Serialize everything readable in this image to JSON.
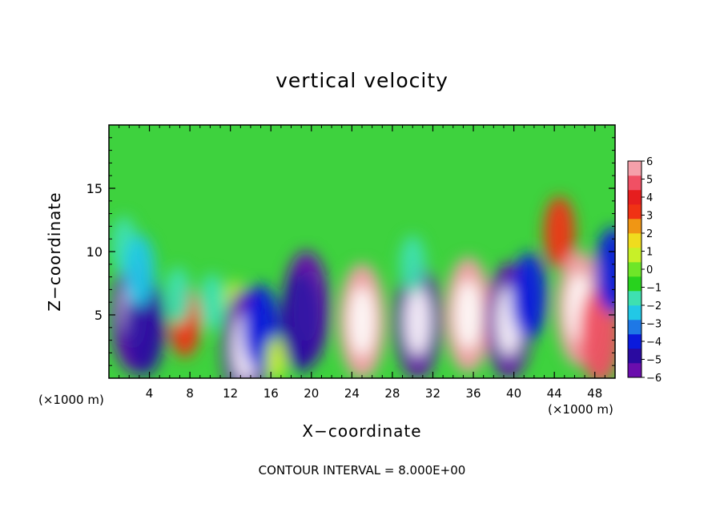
{
  "chart_data": {
    "type": "heatmap",
    "title": "vertical velocity",
    "xlabel": "X−coordinate",
    "ylabel": "Z−coordinate",
    "x_unit_label_left": "(×1000 m)",
    "x_unit_label_right": "(×1000 m)",
    "footer": "CONTOUR INTERVAL = 8.000E+00",
    "xlim": [
      0,
      50
    ],
    "ylim": [
      0,
      20
    ],
    "x_ticks": [
      "4",
      "8",
      "12",
      "16",
      "20",
      "24",
      "28",
      "32",
      "36",
      "40",
      "44",
      "48"
    ],
    "x_tick_values": [
      4,
      8,
      12,
      16,
      20,
      24,
      28,
      32,
      36,
      40,
      44,
      48
    ],
    "y_ticks": [
      "5",
      "10",
      "15"
    ],
    "y_tick_values": [
      5,
      10,
      15
    ],
    "colorbar_range": [
      -6,
      6
    ],
    "colorbar_ticks": [
      "6",
      "5",
      "4",
      "3",
      "2",
      "1",
      "0",
      "−1",
      "−2",
      "−3",
      "−4",
      "−5",
      "−6"
    ],
    "colorbar_tick_values": [
      6,
      5,
      4,
      3,
      2,
      1,
      0,
      -1,
      -2,
      -3,
      -4,
      -5,
      -6
    ],
    "colorbar_colors": [
      "#6a0dad",
      "#2a0aa0",
      "#0a1adc",
      "#1e78e6",
      "#22c8e6",
      "#3ee0b0",
      "#28d21e",
      "#6ee628",
      "#c8f028",
      "#f0dc1e",
      "#f09614",
      "#f03214",
      "#e61e1e",
      "#f05064",
      "#f5a0aa"
    ],
    "background_color": "#3ed23e",
    "cells": [
      {
        "x": 2.5,
        "z": 5.0,
        "w": -6
      },
      {
        "x": 3.5,
        "z": 4.2,
        "w": -5
      },
      {
        "x": 7.5,
        "z": 4.5,
        "w": 3
      },
      {
        "x": 6.8,
        "z": 6.5,
        "w": -2
      },
      {
        "x": 10.2,
        "z": 6.0,
        "w": -2
      },
      {
        "x": 12.5,
        "z": 6.0,
        "w": 1
      },
      {
        "x": 13.5,
        "z": 2.5,
        "w": -6
      },
      {
        "x": 15.0,
        "z": 4.0,
        "w": -4
      },
      {
        "x": 16.5,
        "z": 1.5,
        "w": 1
      },
      {
        "x": 19.5,
        "z": 5.5,
        "w": -6
      },
      {
        "x": 19.0,
        "z": 4.5,
        "w": -5
      },
      {
        "x": 25.0,
        "z": 4.5,
        "w": 6
      },
      {
        "x": 30.5,
        "z": 4.5,
        "w": -6
      },
      {
        "x": 35.5,
        "z": 5.0,
        "w": 6
      },
      {
        "x": 39.5,
        "z": 4.5,
        "w": -6
      },
      {
        "x": 41.5,
        "z": 6.5,
        "w": -4
      },
      {
        "x": 44.5,
        "z": 11.5,
        "w": 3
      },
      {
        "x": 46.5,
        "z": 5.5,
        "w": 6
      },
      {
        "x": 48.5,
        "z": 3.5,
        "w": 5
      },
      {
        "x": 1.5,
        "z": 10.5,
        "w": -2
      },
      {
        "x": 3.0,
        "z": 8.5,
        "w": -3
      },
      {
        "x": 30.0,
        "z": 9.0,
        "w": -2
      },
      {
        "x": 49.8,
        "z": 8.5,
        "w": -4
      }
    ]
  }
}
